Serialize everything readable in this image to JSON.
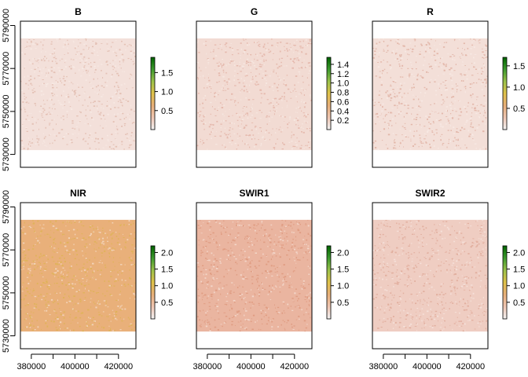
{
  "chart_data": [
    {
      "type": "heatmap",
      "title": "B",
      "x_ticks": [],
      "y_ticks": [
        5730000,
        5750000,
        5770000,
        5790000
      ],
      "xlim": [
        375000,
        428000
      ],
      "ylim": [
        5724000,
        5792000
      ],
      "data_extent": {
        "x": [
          375000,
          428000
        ],
        "y": [
          5732000,
          5784000
        ]
      },
      "legend": {
        "ticks": [
          "0.5",
          "1.0",
          "1.5"
        ],
        "tick_values": [
          0.5,
          1.0,
          1.5
        ],
        "range": [
          0.0,
          1.9
        ]
      },
      "fill_color": "#f3e0da",
      "speckle_color": "#d8a898"
    },
    {
      "type": "heatmap",
      "title": "G",
      "x_ticks": [],
      "y_ticks": [],
      "xlim": [
        375000,
        428000
      ],
      "ylim": [
        5724000,
        5792000
      ],
      "data_extent": {
        "x": [
          375000,
          428000
        ],
        "y": [
          5732000,
          5784000
        ]
      },
      "legend": {
        "ticks": [
          "0.2",
          "0.4",
          "0.6",
          "0.8",
          "1.0",
          "1.2",
          "1.4"
        ],
        "tick_values": [
          0.2,
          0.4,
          0.6,
          0.8,
          1.0,
          1.2,
          1.4
        ],
        "range": [
          0.0,
          1.55
        ]
      },
      "fill_color": "#f2dbd3",
      "speckle_color": "#dca090"
    },
    {
      "type": "heatmap",
      "title": "R",
      "x_ticks": [],
      "y_ticks": [],
      "xlim": [
        375000,
        428000
      ],
      "ylim": [
        5724000,
        5792000
      ],
      "data_extent": {
        "x": [
          375000,
          428000
        ],
        "y": [
          5732000,
          5784000
        ]
      },
      "legend": {
        "ticks": [
          "0.5",
          "1.0",
          "1.5"
        ],
        "tick_values": [
          0.5,
          1.0,
          1.5
        ],
        "range": [
          0.0,
          1.7
        ]
      },
      "fill_color": "#f3dfd8",
      "speckle_color": "#d69a88"
    },
    {
      "type": "heatmap",
      "title": "NIR",
      "x_ticks": [
        380000,
        400000,
        420000
      ],
      "y_ticks": [
        5730000,
        5750000,
        5770000,
        5790000
      ],
      "xlim": [
        375000,
        428000
      ],
      "ylim": [
        5724000,
        5792000
      ],
      "data_extent": {
        "x": [
          375000,
          428000
        ],
        "y": [
          5732000,
          5784000
        ]
      },
      "legend": {
        "ticks": [
          "0.5",
          "1.0",
          "1.5",
          "2.0"
        ],
        "tick_values": [
          0.5,
          1.0,
          1.5,
          2.0
        ],
        "range": [
          0.0,
          2.2
        ]
      },
      "fill_color": "#e9b07a",
      "speckle_color": "#d9b640"
    },
    {
      "type": "heatmap",
      "title": "SWIR1",
      "x_ticks": [
        380000,
        400000,
        420000
      ],
      "y_ticks": [],
      "xlim": [
        375000,
        428000
      ],
      "ylim": [
        5724000,
        5792000
      ],
      "data_extent": {
        "x": [
          375000,
          428000
        ],
        "y": [
          5732000,
          5784000
        ]
      },
      "legend": {
        "ticks": [
          "0.5",
          "1.0",
          "1.5",
          "2.0"
        ],
        "tick_values": [
          0.5,
          1.0,
          1.5,
          2.0
        ],
        "range": [
          0.0,
          2.2
        ]
      },
      "fill_color": "#eab5a0",
      "speckle_color": "#d88a6c"
    },
    {
      "type": "heatmap",
      "title": "SWIR2",
      "x_ticks": [
        380000,
        400000,
        420000
      ],
      "y_ticks": [],
      "xlim": [
        375000,
        428000
      ],
      "ylim": [
        5724000,
        5792000
      ],
      "data_extent": {
        "x": [
          375000,
          428000
        ],
        "y": [
          5732000,
          5784000
        ]
      },
      "legend": {
        "ticks": [
          "0.5",
          "1.0",
          "1.5",
          "2.0"
        ],
        "tick_values": [
          0.5,
          1.0,
          1.5,
          2.0
        ],
        "range": [
          0.0,
          2.2
        ]
      },
      "fill_color": "#efcdc2",
      "speckle_color": "#d99a86"
    }
  ]
}
